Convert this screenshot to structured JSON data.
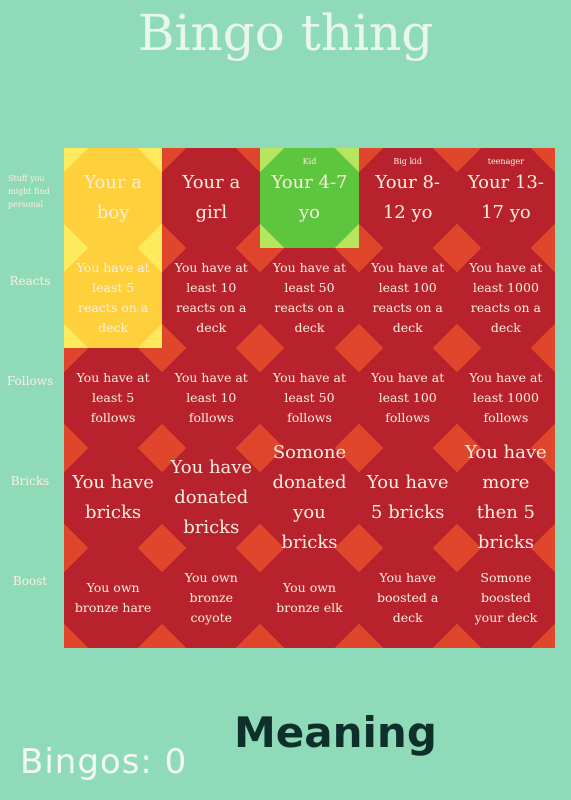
{
  "header": {
    "title": "Bingo thing"
  },
  "board": {
    "rows": [
      {
        "label": "Stuff you might find personal",
        "size": "large",
        "cells": [
          {
            "text": "Your a boy",
            "fill": "#fdd03c"
          },
          {
            "text": "Your a girl"
          },
          {
            "note": "Kid",
            "text": "Your 4-7 yo",
            "fill": "#5dc53e"
          },
          {
            "note": "Big kid",
            "text": "Your 8-12 yo"
          },
          {
            "note": "teenager",
            "text": "Your 13-17 yo"
          }
        ]
      },
      {
        "label": "Reacts",
        "size": "small",
        "cells": [
          {
            "text": "You have at least 5 reacts on a deck",
            "fill": "#fdd03c"
          },
          {
            "text": "You have at least 10 reacts on a deck"
          },
          {
            "text": "You have at least 50 reacts on a deck"
          },
          {
            "text": "You have at least 100 reacts on a deck"
          },
          {
            "text": "You have at least 1000 reacts on a deck"
          }
        ]
      },
      {
        "label": "Follows",
        "size": "small",
        "cells": [
          {
            "text": "You have at least 5 follows"
          },
          {
            "text": "You have at least 10 follows"
          },
          {
            "text": "You have at least 50 follows"
          },
          {
            "text": "You have at least 100 follows"
          },
          {
            "text": "You have at least 1000 follows"
          }
        ]
      },
      {
        "label": "Bricks",
        "size": "large",
        "cells": [
          {
            "text": "You have bricks"
          },
          {
            "text": "You have donated bricks"
          },
          {
            "text": "Somone donated you bricks"
          },
          {
            "text": "You have 5 bricks"
          },
          {
            "text": "You have more then 5 bricks"
          }
        ]
      },
      {
        "label": "Boost",
        "size": "small",
        "cells": [
          {
            "text": "You own bronze hare"
          },
          {
            "text": "You own bronze coyote"
          },
          {
            "text": "You own bronze elk"
          },
          {
            "text": "You have boosted a deck"
          },
          {
            "text": "Somone boosted your deck"
          }
        ]
      }
    ]
  },
  "footer": {
    "score": "Bingos: 0",
    "link": "Meaning"
  }
}
